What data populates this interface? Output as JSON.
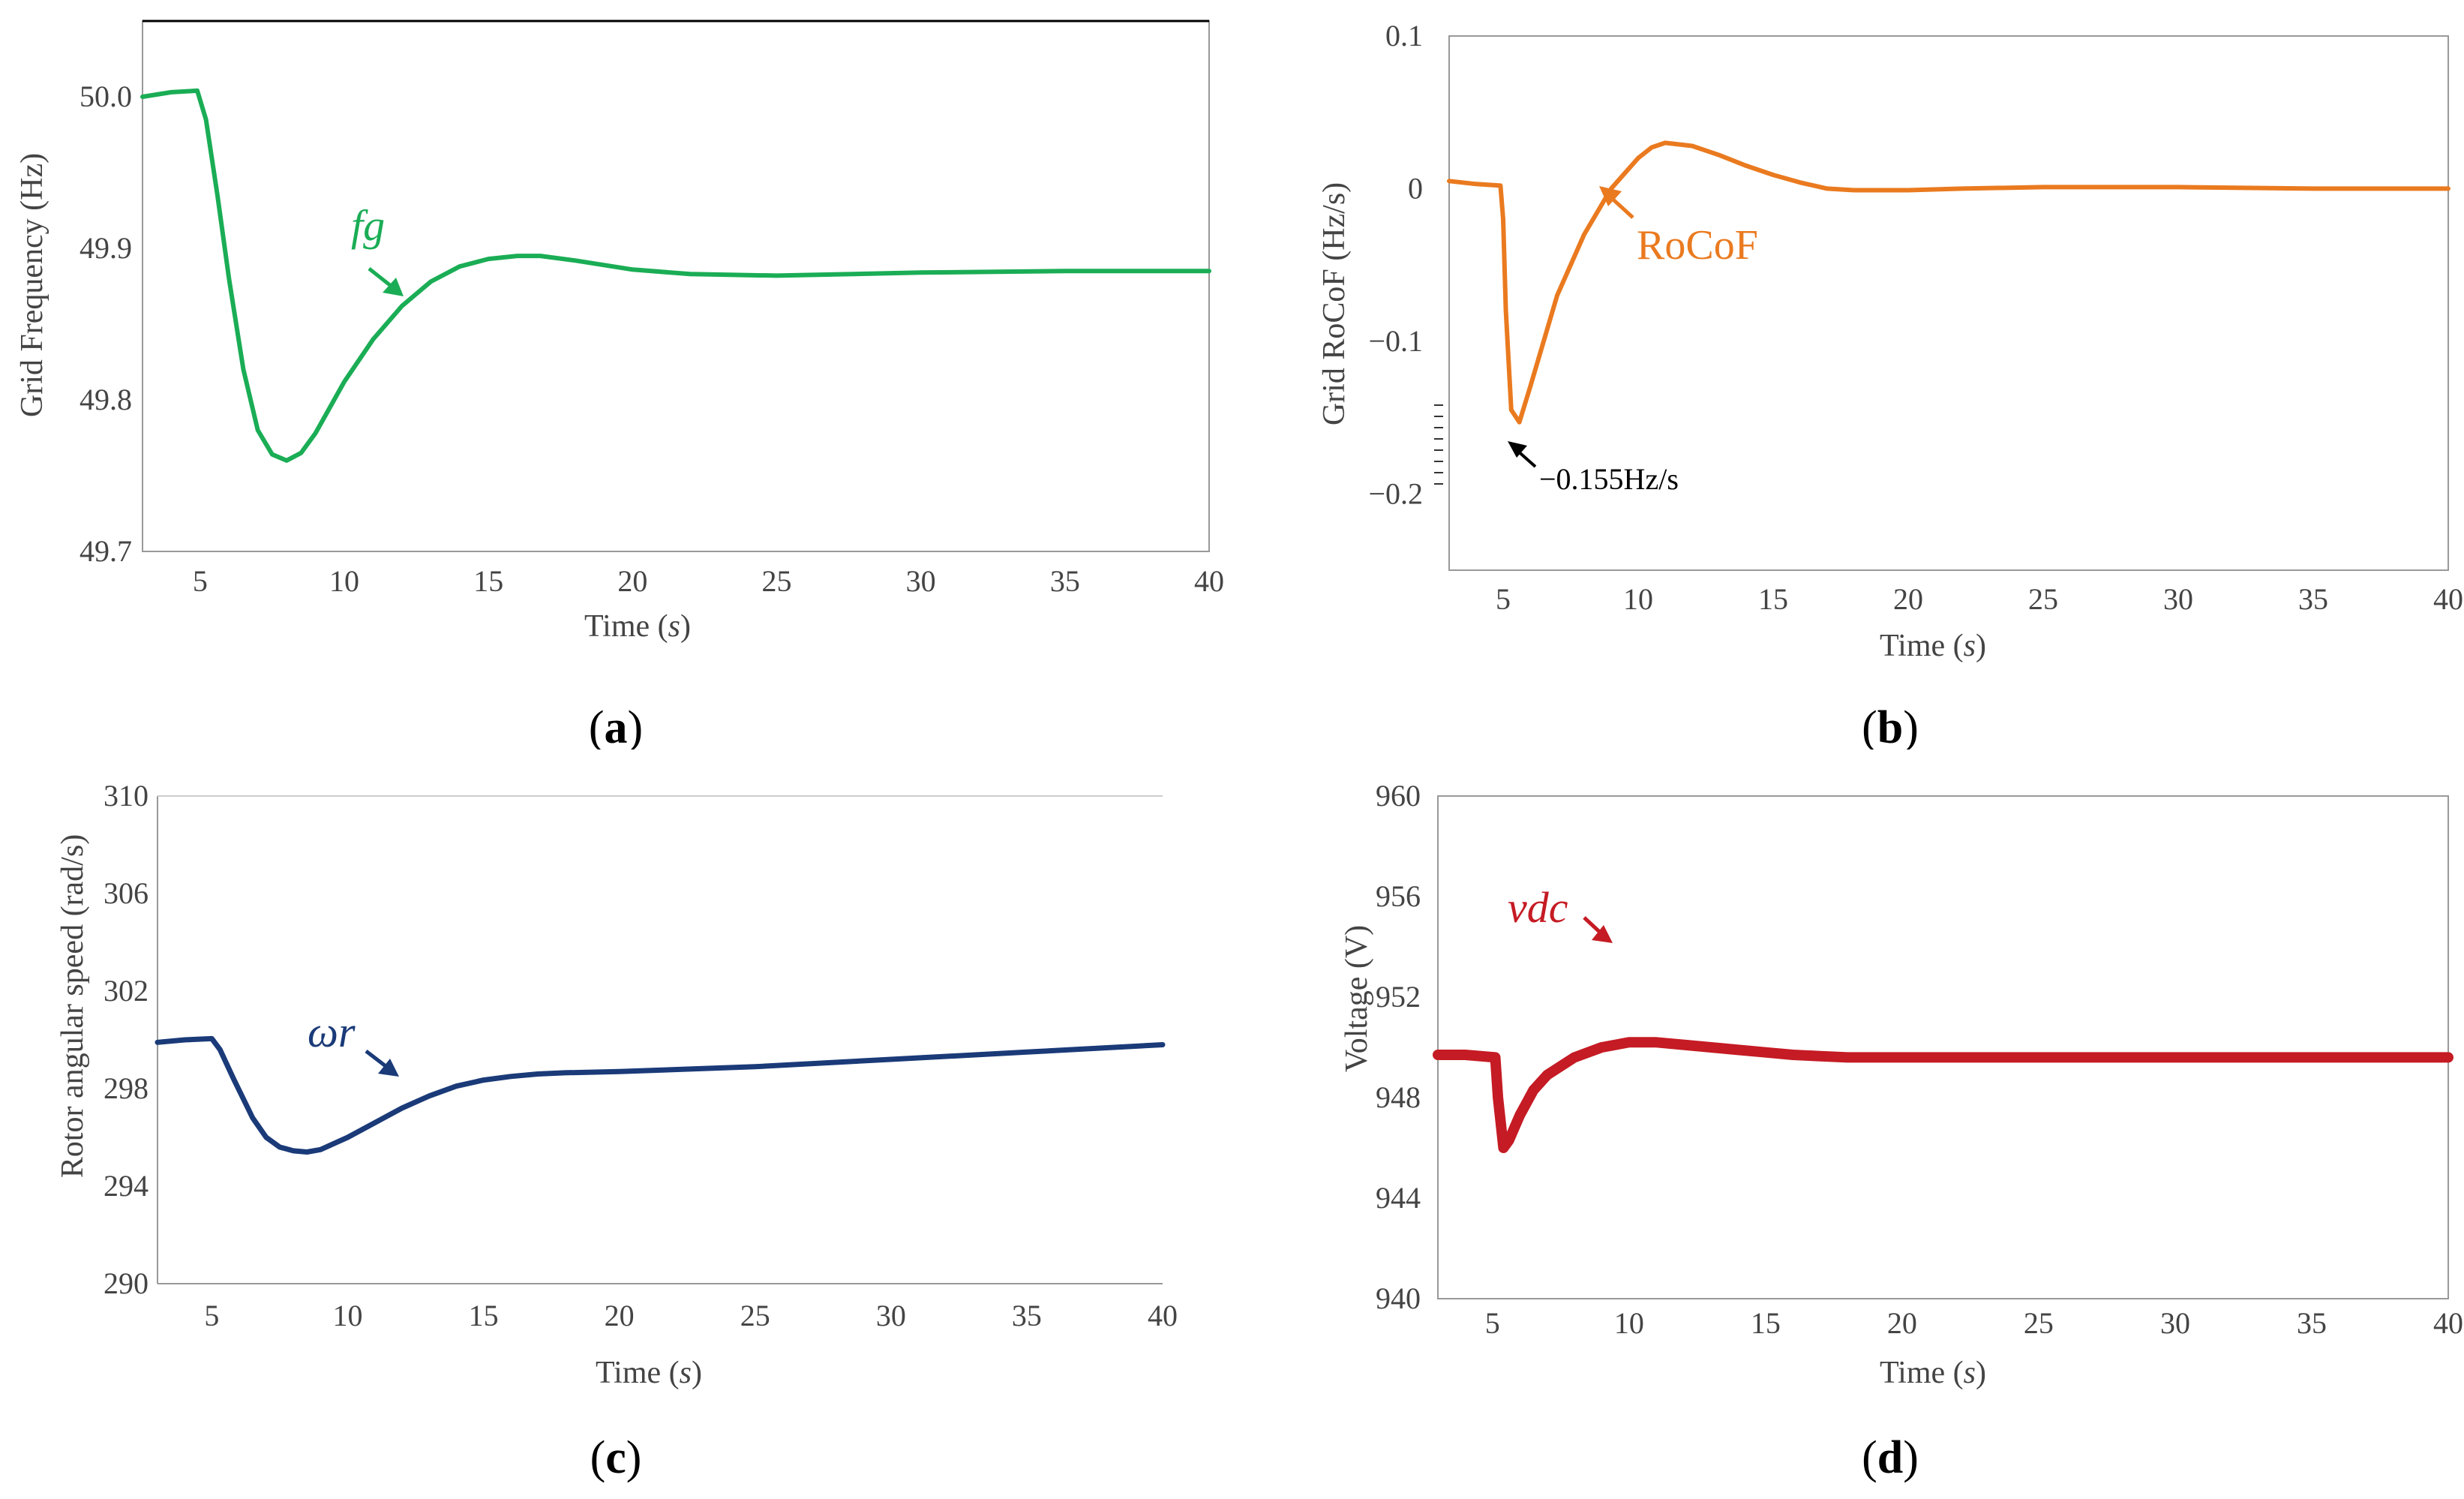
{
  "chart_data": [
    {
      "id": "a",
      "type": "line",
      "panel_label": "a",
      "title": "",
      "xlabel": "Time",
      "xlabel_unit": "s",
      "ylabel": "Grid Frequency (Hz)",
      "xlim": [
        3,
        40
      ],
      "ylim": [
        49.7,
        50.05
      ],
      "xticks": [
        5,
        10,
        15,
        20,
        25,
        30,
        35,
        40
      ],
      "yticks": [
        49.7,
        49.8,
        49.9,
        50.0
      ],
      "ytick_labels": [
        "49.7",
        "49.8",
        "49.9",
        "50.0"
      ],
      "color": "#1aad55",
      "frame": "box",
      "series": [
        {
          "name": "fg",
          "x": [
            3,
            4,
            4.9,
            5.2,
            5.6,
            6,
            6.5,
            7,
            7.5,
            8,
            8.5,
            9,
            9.5,
            10,
            11,
            12,
            13,
            14,
            15,
            16,
            16.8,
            18,
            20,
            22,
            25,
            30,
            35,
            40
          ],
          "values": [
            50.0,
            50.003,
            50.004,
            49.985,
            49.935,
            49.88,
            49.82,
            49.78,
            49.764,
            49.76,
            49.765,
            49.778,
            49.795,
            49.812,
            49.84,
            49.862,
            49.878,
            49.888,
            49.893,
            49.895,
            49.895,
            49.892,
            49.886,
            49.883,
            49.882,
            49.884,
            49.885,
            49.885
          ]
        }
      ],
      "annotations": [
        {
          "text": "fg",
          "arrow": true
        }
      ]
    },
    {
      "id": "b",
      "type": "line",
      "panel_label": "b",
      "title": "",
      "xlabel": "Time",
      "xlabel_unit": "s",
      "ylabel": "Grid RoCoF (Hz/s)",
      "xlim": [
        3,
        40
      ],
      "ylim": [
        -0.25,
        0.1
      ],
      "xticks": [
        5,
        10,
        15,
        20,
        25,
        30,
        35,
        40
      ],
      "yticks": [
        -0.2,
        -0.1,
        0,
        0.1
      ],
      "ytick_labels": [
        "−0.2",
        "−0.1",
        "0",
        "0.1"
      ],
      "color": "#ea7a1f",
      "frame": "box",
      "series": [
        {
          "name": "RoCoF",
          "x": [
            3,
            4,
            4.9,
            5.0,
            5.1,
            5.3,
            5.6,
            6,
            6.5,
            7,
            8,
            9,
            10,
            10.5,
            11,
            12,
            13,
            14,
            15,
            16,
            17,
            18,
            19,
            20,
            22,
            25,
            30,
            35,
            40
          ],
          "values": [
            0.005,
            0.003,
            0.002,
            -0.02,
            -0.08,
            -0.145,
            -0.153,
            -0.13,
            -0.1,
            -0.07,
            -0.03,
            0.0,
            0.02,
            0.027,
            0.03,
            0.028,
            0.022,
            0.015,
            0.009,
            0.004,
            0.0,
            -0.001,
            -0.001,
            -0.001,
            0.0,
            0.001,
            0.001,
            0.0,
            0.0
          ]
        }
      ],
      "annotations": [
        {
          "text": "RoCoF",
          "arrow": true
        },
        {
          "text": "−0.155Hz/s",
          "arrow": true
        }
      ]
    },
    {
      "id": "c",
      "type": "line",
      "panel_label": "c",
      "title": "",
      "xlabel": "Time",
      "xlabel_unit": "s",
      "ylabel": "Rotor angular speed (rad/s)",
      "xlim": [
        3,
        40
      ],
      "ylim": [
        290,
        310
      ],
      "xticks": [
        5,
        10,
        15,
        20,
        25,
        30,
        35,
        40
      ],
      "yticks": [
        290,
        294,
        298,
        302,
        306,
        310
      ],
      "ytick_labels": [
        "290",
        "294",
        "298",
        "302",
        "306",
        "310"
      ],
      "color": "#1a3a78",
      "frame": "open",
      "series": [
        {
          "name": "ωr",
          "x": [
            3,
            4,
            5,
            5.3,
            5.8,
            6.5,
            7,
            7.5,
            8,
            8.5,
            9,
            10,
            11,
            12,
            13,
            14,
            15,
            16,
            17,
            18,
            20,
            25,
            30,
            35,
            40
          ],
          "values": [
            299.9,
            300.0,
            300.05,
            299.6,
            298.4,
            296.8,
            296.0,
            295.6,
            295.45,
            295.4,
            295.5,
            296.0,
            296.6,
            297.2,
            297.7,
            298.1,
            298.35,
            298.5,
            298.6,
            298.65,
            298.7,
            298.9,
            299.2,
            299.5,
            299.8
          ]
        }
      ],
      "annotations": [
        {
          "text": "ωr",
          "arrow": true
        }
      ]
    },
    {
      "id": "d",
      "type": "line",
      "panel_label": "d",
      "title": "",
      "xlabel": "Time",
      "xlabel_unit": "s",
      "ylabel": "Voltage (V)",
      "xlim": [
        3,
        40
      ],
      "ylim": [
        940,
        960
      ],
      "xticks": [
        5,
        10,
        15,
        20,
        25,
        30,
        35,
        40
      ],
      "yticks": [
        940,
        944,
        948,
        952,
        956,
        960
      ],
      "ytick_labels": [
        "940",
        "944",
        "948",
        "952",
        "956",
        "960"
      ],
      "color": "#c51b24",
      "frame": "box",
      "series": [
        {
          "name": "vdc",
          "x": [
            3,
            4,
            5.1,
            5.2,
            5.4,
            5.6,
            6,
            6.5,
            7,
            8,
            9,
            10,
            11,
            12,
            13,
            14,
            15,
            16,
            17,
            18,
            20,
            25,
            30,
            35,
            40
          ],
          "values": [
            949.7,
            949.7,
            949.6,
            948.0,
            946.0,
            946.3,
            947.3,
            948.3,
            948.9,
            949.6,
            950.0,
            950.2,
            950.2,
            950.1,
            950.0,
            949.9,
            949.8,
            949.7,
            949.65,
            949.6,
            949.6,
            949.6,
            949.6,
            949.6,
            949.6
          ]
        }
      ],
      "annotations": [
        {
          "text": "vdc",
          "arrow": true
        }
      ]
    }
  ]
}
